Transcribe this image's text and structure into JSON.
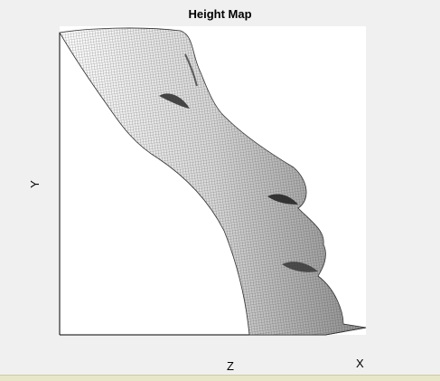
{
  "figure": {
    "title": "Height Map",
    "axis_labels": {
      "y": "Y",
      "z": "Z",
      "x": "X"
    },
    "colormap": "gray",
    "background_color": "#ffffff",
    "window_color": "#f0f0f0",
    "mesh_stroke": "#1a1a1a"
  }
}
